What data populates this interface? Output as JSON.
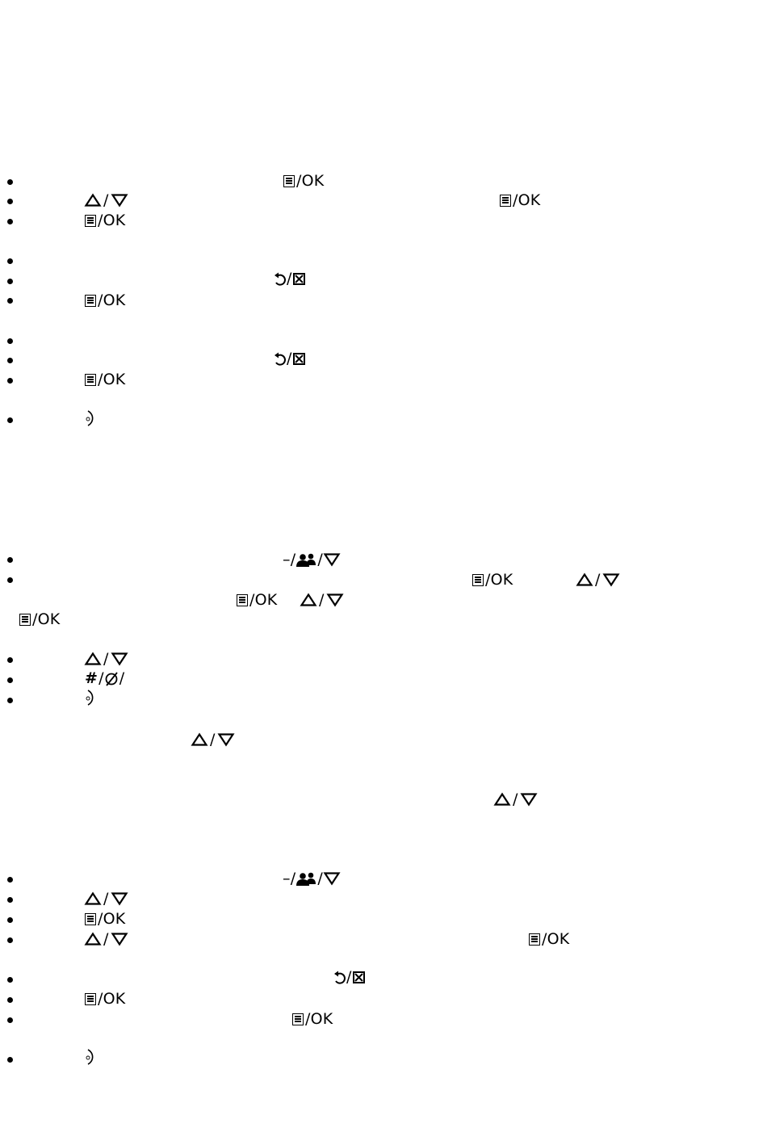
{
  "labels": {
    "menu_ok": "/OK",
    "slash": "/",
    "hash_symbol": "#",
    "dash_symbol": "–/"
  },
  "icons": {
    "menu": "menu-icon",
    "up": "triangle-up-icon",
    "down": "triangle-down-icon",
    "back": "back-arrow-icon",
    "clear": "clear-box-icon",
    "end_call": "end-call-icon",
    "contacts": "contacts-icon",
    "mute": "mute-circle-icon"
  }
}
